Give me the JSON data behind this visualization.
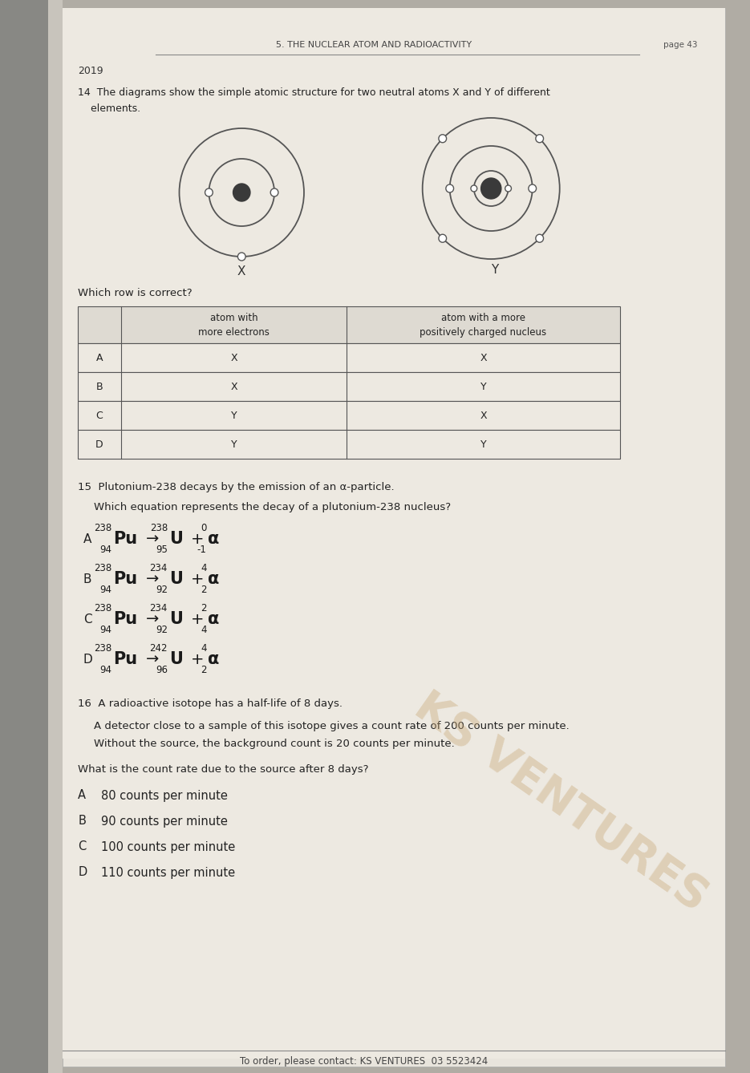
{
  "page_header": "5. THE NUCLEAR ATOM AND RADIOACTIVITY",
  "page_number": "page 43",
  "year": "2019",
  "bg_outer": "#b0aca4",
  "bg_spine": "#a0a098",
  "paper_color": "#e8e4dc",
  "paper_inner": "#ede9e1",
  "q14_line1": "14  The diagrams show the simple atomic structure for two neutral atoms X and Y of different",
  "q14_line2": "    elements.",
  "q14_which": "Which row is correct?",
  "table_headers": [
    "",
    "atom with\nmore electrons",
    "atom with a more\npositively charged nucleus"
  ],
  "table_rows": [
    [
      "A",
      "X",
      "X"
    ],
    [
      "B",
      "X",
      "Y"
    ],
    [
      "C",
      "Y",
      "X"
    ],
    [
      "D",
      "Y",
      "Y"
    ]
  ],
  "q15_text1": "15  Plutonium-238 decays by the emission of an α-particle.",
  "q15_text2": "Which equation represents the decay of a plutonium-238 nucleus?",
  "q16_text1": "16  A radioactive isotope has a half-life of 8 days.",
  "q16_text2a": "A detector close to a sample of this isotope gives a count rate of 200 counts per minute.",
  "q16_text2b": "Without the source, the background count is 20 counts per minute.",
  "q16_text3": "What is the count rate due to the source after 8 days?",
  "q16_options": [
    [
      "A",
      "80 counts per minute"
    ],
    [
      "B",
      "90 counts per minute"
    ],
    [
      "C",
      "100 counts per minute"
    ],
    [
      "D",
      "110 counts per minute"
    ]
  ],
  "footer": "To order, please contact: KS VENTURES  03 5523424",
  "watermark": "KS VENTURES"
}
